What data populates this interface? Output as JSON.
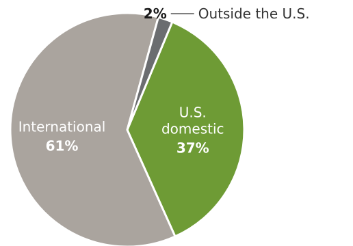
{
  "chart_data": {
    "type": "pie",
    "slices": [
      {
        "label": "U.S. domestic",
        "label_lines": [
          "U.S.",
          "domestic"
        ],
        "value": 37,
        "value_label": "37%",
        "color": "#6e9b35"
      },
      {
        "label": "International",
        "label_lines": [
          "International"
        ],
        "value": 61,
        "value_label": "61%",
        "color": "#aaa49e"
      },
      {
        "label": "Outside the U.S.",
        "label_lines": [
          "Outside the U.S."
        ],
        "value": 2,
        "value_label": "2%",
        "color": "#6b6d70"
      }
    ],
    "start": "top, clockwise",
    "legend": "none",
    "callout": "Outside the U.S. slice labeled with leader line above"
  }
}
